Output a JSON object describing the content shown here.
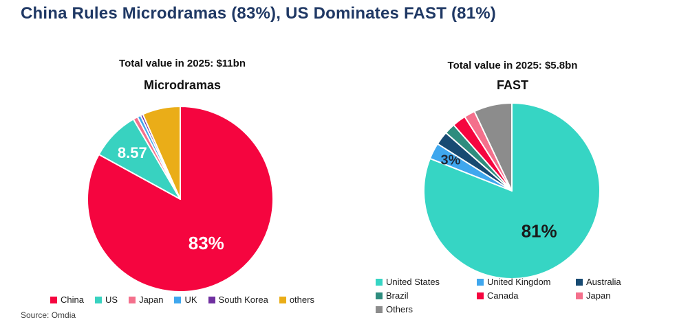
{
  "page": {
    "title": "China Rules Microdramas (83%), US Dominates FAST (81%)",
    "title_color": "#1F3864",
    "source": "Source: Omdia"
  },
  "chart_data": [
    {
      "type": "pie",
      "title": "Microdramas",
      "subtitle": "Total value in 2025: $11bn",
      "total_value": "$11bn",
      "year": "2025",
      "legend_position": "bottom-centered-row",
      "start_angle_deg": 0,
      "direction": "clockwise",
      "slices": [
        {
          "name": "China",
          "value": 83,
          "color": "#F5053F",
          "label": {
            "text": "83%",
            "color": "#FFFFFF",
            "size": 26,
            "r_frac": 0.55
          }
        },
        {
          "name": "US",
          "value": 8.57,
          "color": "#38D2C0",
          "label": {
            "text": "8.57",
            "color": "#FFFFFF",
            "size": 22,
            "r_frac": 0.72
          }
        },
        {
          "name": "Japan",
          "value": 0.8,
          "color": "#F4708C"
        },
        {
          "name": "UK",
          "value": 0.6,
          "color": "#3FA7EE"
        },
        {
          "name": "South Korea",
          "value": 0.43,
          "color": "#7030A0"
        },
        {
          "name": "others",
          "value": 6.6,
          "color": "#EAAD18"
        }
      ]
    },
    {
      "type": "pie",
      "title": "FAST",
      "subtitle": "Total value in 2025: $5.8bn",
      "total_value": "$5.8bn",
      "year": "2025",
      "legend_position": "bottom-left-grid-3col",
      "start_angle_deg": 0,
      "direction": "clockwise",
      "slices": [
        {
          "name": "United States",
          "value": 81,
          "color": "#36D5C4",
          "label": {
            "text": "81%",
            "color": "#1A1A1A",
            "size": 26,
            "r_frac": 0.55
          }
        },
        {
          "name": "United Kingdom",
          "value": 3,
          "color": "#3FA7EE",
          "label": {
            "text": "3%",
            "color": "#1F2937",
            "size": 20,
            "r_frac": 0.78
          }
        },
        {
          "name": "Australia",
          "value": 2.5,
          "color": "#174A72"
        },
        {
          "name": "Brazil",
          "value": 2,
          "color": "#2E8C7E"
        },
        {
          "name": "Canada",
          "value": 2.5,
          "color": "#F5053F"
        },
        {
          "name": "Japan",
          "value": 2,
          "color": "#F4708C"
        },
        {
          "name": "Others",
          "value": 7,
          "color": "#8C8C8C"
        }
      ]
    }
  ]
}
